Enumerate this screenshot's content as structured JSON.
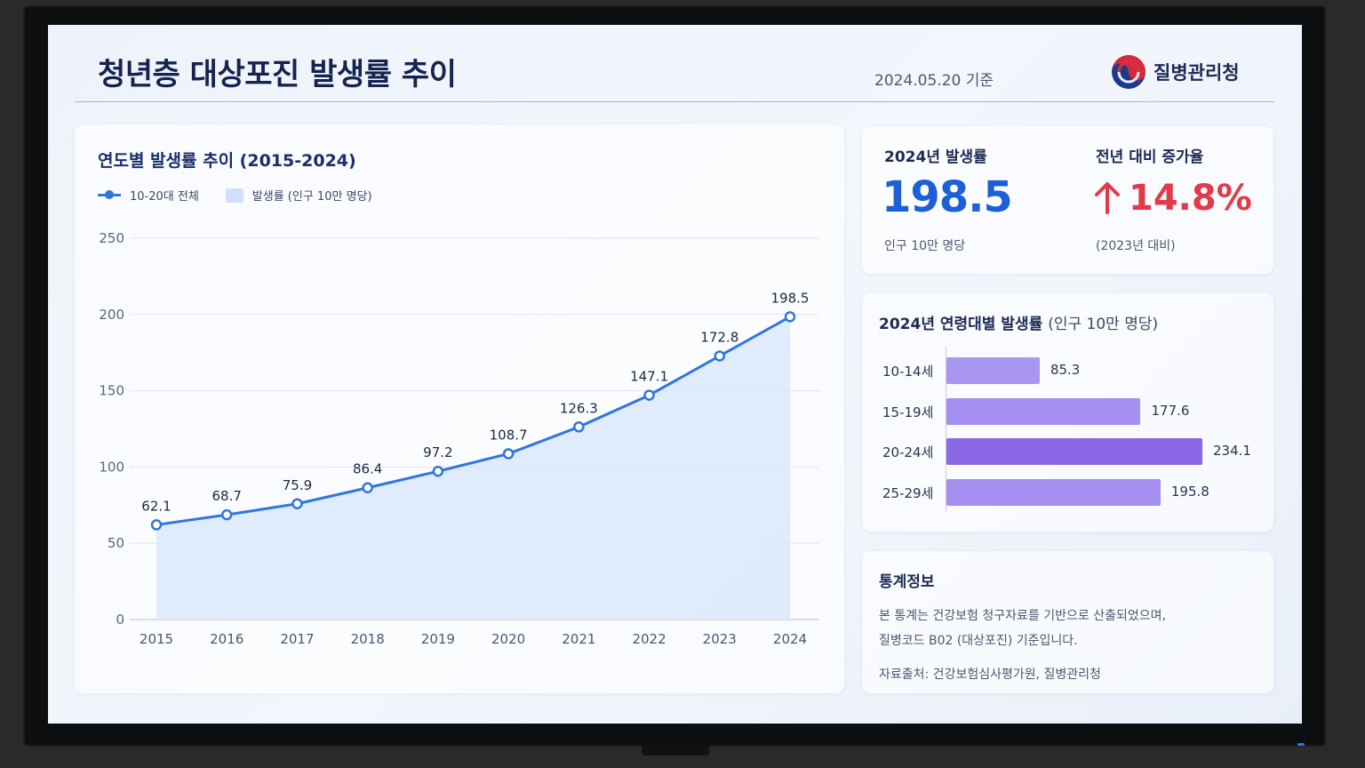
{
  "header": {
    "title": "청년층 대상포진 발생률 추이",
    "date": "2024.05.20 기준",
    "org": "질병관리청"
  },
  "line_chart": {
    "title": "연도별 발생률 추이 (2015-2024)",
    "legend_line": "10-20대 전체",
    "legend_area": "발생률 (인구 10만 명당)"
  },
  "chart_data": {
    "type": "line",
    "series_name": "10-20대 전체",
    "categories": [
      "2015",
      "2016",
      "2017",
      "2018",
      "2019",
      "2020",
      "2021",
      "2022",
      "2023",
      "2024"
    ],
    "values": [
      62.1,
      68.7,
      75.9,
      86.4,
      97.2,
      108.7,
      126.3,
      147.1,
      172.8,
      198.5
    ],
    "yticks": [
      0,
      50,
      100,
      150,
      200,
      250
    ],
    "ylim": [
      0,
      250
    ],
    "grid": true,
    "legend_position": "top-left",
    "line_color": "#2f76e0",
    "area_color": "#dbe8fb"
  },
  "kpi": {
    "rate_label": "2024년 발생률",
    "rate_value": "198.5",
    "rate_sub": "인구 10만 명당",
    "change_label": "전년 대비 증가율",
    "change_value": "14.8%",
    "change_sub": "(2023년 대비)",
    "change_icon": "arrow-up-icon"
  },
  "age_chart": {
    "title": "2024년 연령대별 발생률",
    "unit": "(인구 10만 명당)",
    "max": 234.1,
    "rows": [
      {
        "label": "10-14세",
        "value": 85.3,
        "value_text": "85.3",
        "color": "#a996ef"
      },
      {
        "label": "15-19세",
        "value": 177.6,
        "value_text": "177.6",
        "color": "#a58ff0"
      },
      {
        "label": "20-24세",
        "value": 234.1,
        "value_text": "234.1",
        "color": "#8b68e6"
      },
      {
        "label": "25-29세",
        "value": 195.8,
        "value_text": "195.8",
        "color": "#a58ff0"
      }
    ]
  },
  "info": {
    "title": "통계정보",
    "line1": "본 통계는 건강보험 청구자료를 기반으로 산출되었으며,",
    "line2": "질병코드 B02 (대상포진) 기준입니다.",
    "source": "자료출처: 건강보험심사평가원, 질병관리청"
  }
}
